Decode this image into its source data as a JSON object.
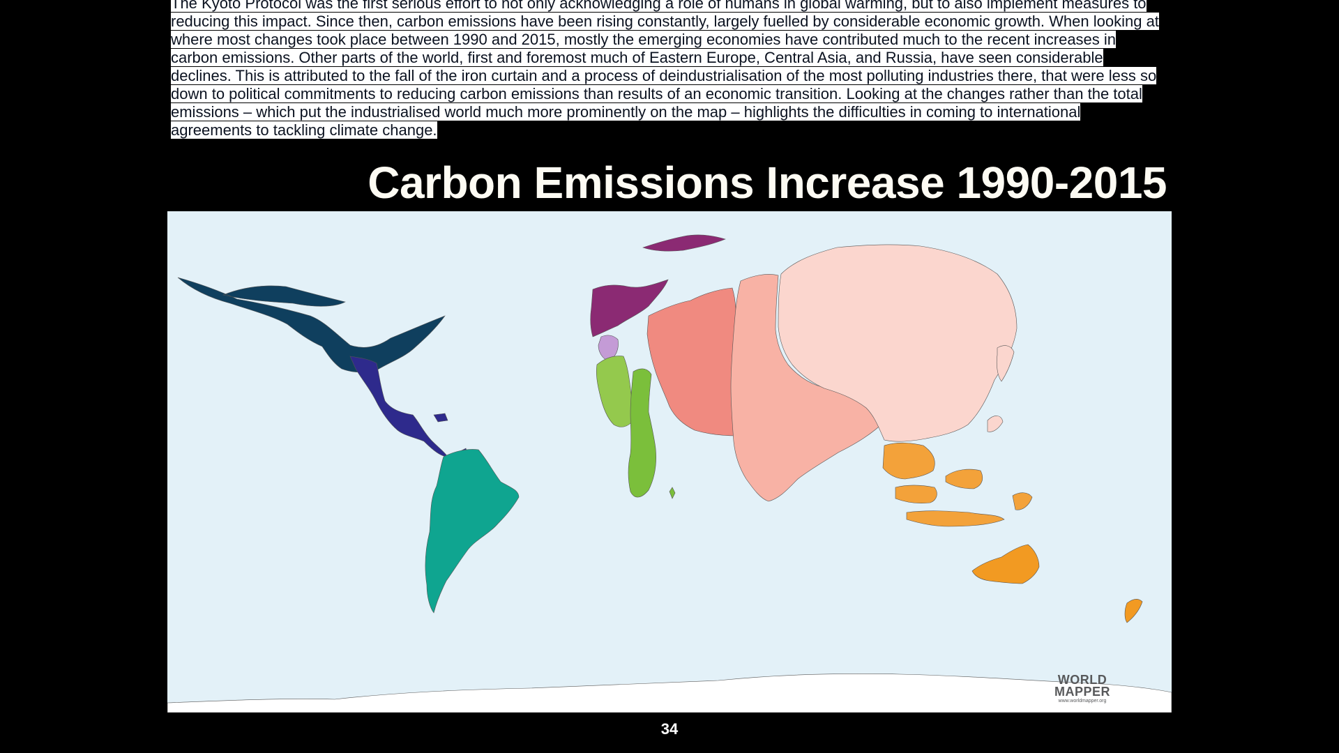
{
  "intro_paragraph": "The Kyoto Protocol was the first serious effort to not only acknowledging a role of humans in global warming, but to also implement measures to reducing this impact. Since then, carbon emissions have been rising constantly, largely fuelled by considerable economic growth. When looking at where most changes took place between 1990 and 2015, mostly the emerging economies have contributed much to the recent increases in carbon emissions. Other parts of the world, first and foremost much of Eastern Europe, Central Asia, and Russia, have seen considerable declines. This is attributed to the fall of the iron curtain and a process of deindustrialisation of the most polluting industries there, that were less so down to political commitments to reducing carbon emissions than results of an economic transition. Looking at the changes rather than the total emissions – which put the industrialised world much more prominently on the map – highlights the difficulties in coming to international agreements to tackling climate change.",
  "map": {
    "title": "Carbon Emissions Increase 1990-2015",
    "ocean_color": "#e3f1f8",
    "land_colors": {
      "north_america": "#0f3f5e",
      "central_america": "#2e2a8c",
      "south_america": "#0fa590",
      "europe": "#8b2a73",
      "northern_africa": "#c49bd6",
      "western_africa": "#94c94d",
      "southern_africa": "#7bbf3b",
      "middle_east": "#f08a80",
      "south_asia": "#f8b2a5",
      "east_asia": "#fbd6ce",
      "southeast_asia": "#f3a23a",
      "oceania": "#f29a22",
      "antarctica": "#ffffff"
    },
    "logo": {
      "line1": "WORLD",
      "line2": "MAPPER",
      "line3": "www.worldmapper.org"
    }
  },
  "page_number": "34"
}
